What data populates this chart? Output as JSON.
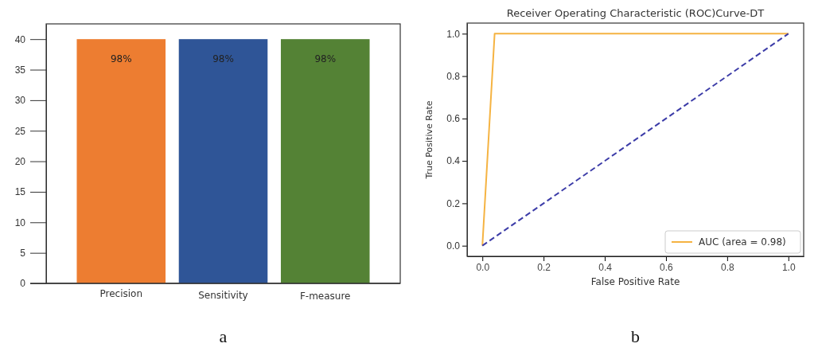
{
  "chart_data": [
    {
      "type": "bar",
      "categories": [
        "Precision",
        "Sensitivity",
        "F-measure"
      ],
      "values": [
        40,
        40,
        40
      ],
      "colors": [
        "#ed7d31",
        "#2f5597",
        "#548235"
      ],
      "ylim": [
        0,
        42.5
      ],
      "yticks": [
        0,
        5,
        10,
        15,
        20,
        25,
        30,
        35,
        40
      ],
      "grid": false,
      "annotations": [
        {
          "text": "98%",
          "x": "Precision",
          "y": 40
        },
        {
          "text": "98%",
          "x": "Sensitivity",
          "y": 40
        },
        {
          "text": "98%",
          "x": "F-measure",
          "y": 40
        },
        "a"
      ]
    },
    {
      "type": "line",
      "title": "Receiver Operating Characteristic (ROC)Curve-DT",
      "xlabel": "False Positive Rate",
      "ylabel": "True Positive Rate",
      "xlim": [
        -0.05,
        1.05
      ],
      "ylim": [
        -0.05,
        1.05
      ],
      "xticks": [
        {
          "value": 0,
          "label": "0.0"
        },
        {
          "value": 0.2,
          "label": "0.2"
        },
        {
          "value": 0.4,
          "label": "0.4"
        },
        {
          "value": 0.6,
          "label": "0.6"
        },
        {
          "value": 0.8,
          "label": "0.8"
        },
        {
          "value": 1,
          "label": "1.0"
        }
      ],
      "yticks": [
        {
          "value": 0,
          "label": "0.0"
        },
        {
          "value": 0.2,
          "label": "0.2"
        },
        {
          "value": 0.4,
          "label": "0.4"
        },
        {
          "value": 0.6,
          "label": "0.6"
        },
        {
          "value": 0.8,
          "label": "0.8"
        },
        {
          "value": 1,
          "label": "1.0"
        }
      ],
      "grid": false,
      "legend": "bottom right",
      "annotations": [
        "b"
      ],
      "series": [
        {
          "name": "AUC (area = 0.98)",
          "color": "#f5b342",
          "x": [
            0,
            0.04,
            1
          ],
          "values": [
            0,
            1,
            1
          ],
          "line_style": "solid"
        },
        {
          "color": "#3c3ca8",
          "x": [
            0,
            1
          ],
          "values": [
            0,
            1
          ],
          "line_style": "dashed"
        }
      ]
    }
  ]
}
